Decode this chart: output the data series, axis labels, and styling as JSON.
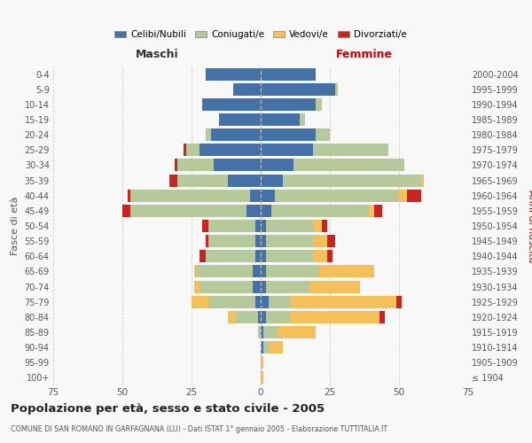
{
  "age_groups": [
    "100+",
    "95-99",
    "90-94",
    "85-89",
    "80-84",
    "75-79",
    "70-74",
    "65-69",
    "60-64",
    "55-59",
    "50-54",
    "45-49",
    "40-44",
    "35-39",
    "30-34",
    "25-29",
    "20-24",
    "15-19",
    "10-14",
    "5-9",
    "0-4"
  ],
  "birth_years": [
    "≤ 1904",
    "1905-1909",
    "1910-1914",
    "1915-1919",
    "1920-1924",
    "1925-1929",
    "1930-1934",
    "1935-1939",
    "1940-1944",
    "1945-1949",
    "1950-1954",
    "1955-1959",
    "1960-1964",
    "1965-1969",
    "1970-1974",
    "1975-1979",
    "1980-1984",
    "1985-1989",
    "1990-1994",
    "1995-1999",
    "2000-2004"
  ],
  "males": {
    "celibe": [
      0,
      0,
      0,
      0,
      1,
      2,
      3,
      3,
      2,
      2,
      2,
      5,
      4,
      12,
      17,
      22,
      18,
      15,
      21,
      10,
      20
    ],
    "coniugato": [
      0,
      0,
      0,
      1,
      8,
      17,
      19,
      20,
      18,
      17,
      17,
      42,
      43,
      18,
      13,
      5,
      2,
      0,
      0,
      0,
      0
    ],
    "vedovo": [
      0,
      0,
      0,
      0,
      3,
      6,
      2,
      1,
      0,
      0,
      0,
      0,
      0,
      0,
      0,
      0,
      0,
      0,
      0,
      0,
      0
    ],
    "divorziato": [
      0,
      0,
      0,
      0,
      0,
      0,
      0,
      0,
      2,
      1,
      2,
      3,
      1,
      3,
      1,
      1,
      0,
      0,
      0,
      0,
      0
    ]
  },
  "females": {
    "nubile": [
      0,
      0,
      1,
      1,
      2,
      3,
      2,
      2,
      2,
      2,
      2,
      4,
      5,
      8,
      12,
      19,
      20,
      14,
      20,
      27,
      20
    ],
    "coniugata": [
      0,
      0,
      2,
      5,
      9,
      8,
      16,
      19,
      17,
      17,
      17,
      35,
      45,
      50,
      40,
      27,
      5,
      2,
      2,
      1,
      0
    ],
    "vedova": [
      1,
      1,
      5,
      14,
      32,
      38,
      18,
      20,
      5,
      5,
      3,
      2,
      3,
      1,
      0,
      0,
      0,
      0,
      0,
      0,
      0
    ],
    "divorziata": [
      0,
      0,
      0,
      0,
      2,
      2,
      0,
      0,
      2,
      3,
      2,
      3,
      5,
      0,
      0,
      0,
      0,
      0,
      0,
      0,
      0
    ]
  },
  "colors": {
    "celibe": "#4472a8",
    "coniugato": "#b5c99a",
    "vedovo": "#f5c05a",
    "divorziato": "#cc2222"
  },
  "title": "Popolazione per età, sesso e stato civile - 2005",
  "subtitle": "COMUNE DI SAN ROMANO IN GARFAGNANA (LU) - Dati ISTAT 1° gennaio 2005 - Elaborazione TUTTITALIA.IT",
  "xlabel_left": "Maschi",
  "xlabel_right": "Femmine",
  "ylabel_left": "Fasce di età",
  "ylabel_right": "Anni di nascita",
  "xlim": 75,
  "bg_color": "#f8f8f8",
  "grid_color": "#cccccc",
  "legend_labels": [
    "Celibi/Nubili",
    "Coniugati/e",
    "Vedovi/e",
    "Divorziati/e"
  ]
}
